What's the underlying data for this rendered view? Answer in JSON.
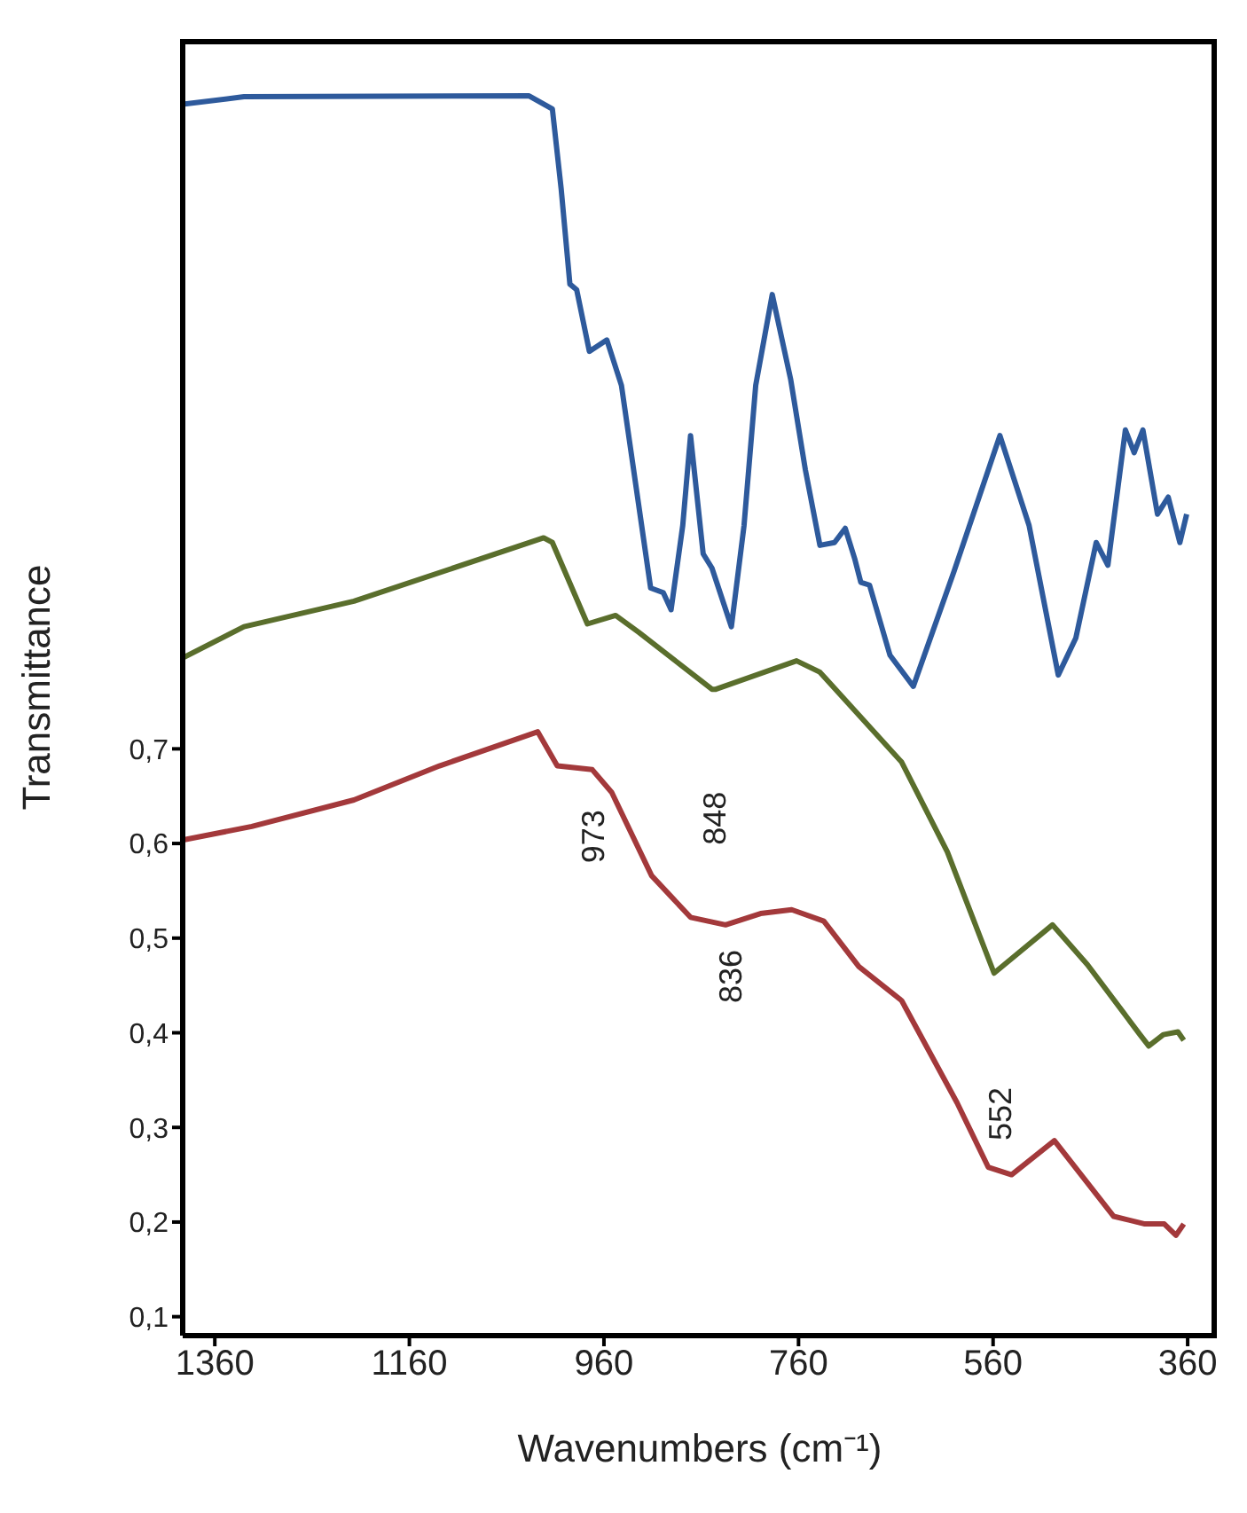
{
  "chart_data": {
    "type": "line",
    "xlabel": "Wavenumbers (cm⁻¹)",
    "ylabel": "Transmittance",
    "xlim": [
      1393,
      330
    ],
    "xticks": [
      1360,
      1160,
      960,
      760,
      560,
      360
    ],
    "ylim": [
      0.08,
      1.45
    ],
    "yticks": [
      {
        "value": 0.1,
        "label": "0,1"
      },
      {
        "value": 0.2,
        "label": "0,2"
      },
      {
        "value": 0.3,
        "label": "0,3"
      },
      {
        "value": 0.4,
        "label": "0,4"
      },
      {
        "value": 0.5,
        "label": "0,5"
      },
      {
        "value": 0.6,
        "label": "0,6"
      },
      {
        "value": 0.7,
        "label": "0,7"
      }
    ],
    "series": [
      {
        "color": "#2e5a9c",
        "x": [
          1393,
          1330,
          1037,
          1013,
          1004,
          995,
          988,
          975,
          957,
          942,
          912,
          899,
          891,
          879,
          871,
          858,
          849,
          829,
          816,
          804,
          787,
          768,
          753,
          738,
          723,
          712,
          702,
          696,
          687,
          666,
          642,
          600,
          553,
          523,
          493,
          475,
          454,
          442,
          424,
          415,
          406,
          391,
          380,
          368,
          361
        ],
        "values": [
          1.381,
          1.389,
          1.39,
          1.376,
          1.292,
          1.191,
          1.185,
          1.12,
          1.132,
          1.084,
          0.87,
          0.865,
          0.847,
          0.936,
          1.031,
          0.906,
          0.891,
          0.829,
          0.936,
          1.084,
          1.18,
          1.09,
          0.995,
          0.915,
          0.918,
          0.933,
          0.9,
          0.876,
          0.873,
          0.799,
          0.766,
          0.888,
          1.031,
          0.936,
          0.778,
          0.817,
          0.918,
          0.894,
          1.037,
          1.013,
          1.037,
          0.948,
          0.966,
          0.918,
          0.948
        ]
      },
      {
        "color": "#5a6e2c",
        "x": [
          1393,
          1330,
          1217,
          1022,
          1013,
          977,
          948,
          924,
          849,
          845,
          762,
          738,
          654,
          607,
          559,
          499,
          463,
          409,
          400,
          385,
          370,
          364
        ],
        "values": [
          0.796,
          0.829,
          0.856,
          0.923,
          0.918,
          0.832,
          0.841,
          0.823,
          0.763,
          0.763,
          0.793,
          0.781,
          0.686,
          0.591,
          0.463,
          0.514,
          0.472,
          0.398,
          0.386,
          0.398,
          0.401,
          0.392
        ]
      },
      {
        "color": "#a3393b",
        "x": [
          1391,
          1322,
          1217,
          1129,
          1028,
          1008,
          972,
          952,
          911,
          871,
          835,
          799,
          767,
          734,
          698,
          654,
          597,
          565,
          541,
          497,
          436,
          404,
          384,
          372,
          364
        ],
        "values": [
          0.604,
          0.618,
          0.646,
          0.682,
          0.718,
          0.682,
          0.678,
          0.654,
          0.566,
          0.522,
          0.514,
          0.526,
          0.53,
          0.518,
          0.47,
          0.434,
          0.326,
          0.258,
          0.25,
          0.286,
          0.206,
          0.198,
          0.198,
          0.186,
          0.198
        ]
      }
    ],
    "annotations": [
      "973",
      "848",
      "836",
      "552"
    ]
  }
}
